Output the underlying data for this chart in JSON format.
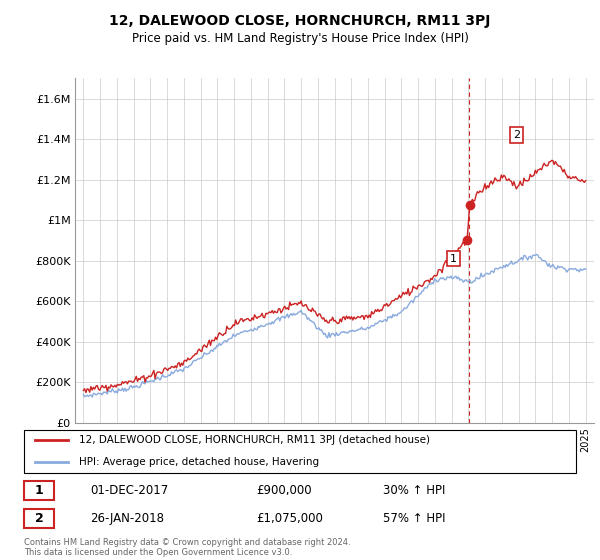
{
  "title": "12, DALEWOOD CLOSE, HORNCHURCH, RM11 3PJ",
  "subtitle": "Price paid vs. HM Land Registry's House Price Index (HPI)",
  "legend_line1": "12, DALEWOOD CLOSE, HORNCHURCH, RM11 3PJ (detached house)",
  "legend_line2": "HPI: Average price, detached house, Havering",
  "transaction1_label": "1",
  "transaction1_date": "01-DEC-2017",
  "transaction1_price": "£900,000",
  "transaction1_hpi": "30% ↑ HPI",
  "transaction2_label": "2",
  "transaction2_date": "26-JAN-2018",
  "transaction2_price": "£1,075,000",
  "transaction2_hpi": "57% ↑ HPI",
  "footer": "Contains HM Land Registry data © Crown copyright and database right 2024.\nThis data is licensed under the Open Government Licence v3.0.",
  "red_color": "#cc2222",
  "blue_color": "#88aadd",
  "dashed_color": "#cc2222",
  "ylim_min": 0,
  "ylim_max": 1700000,
  "yticks": [
    0,
    200000,
    400000,
    600000,
    800000,
    1000000,
    1200000,
    1400000,
    1600000
  ],
  "ytick_labels": [
    "£0",
    "£200K",
    "£400K",
    "£600K",
    "£800K",
    "£1M",
    "£1.2M",
    "£1.4M",
    "£1.6M"
  ],
  "year_start": 1995,
  "year_end": 2025,
  "transaction1_year": 2017.92,
  "transaction1_value": 900000,
  "transaction2_year": 2018.07,
  "transaction2_value": 1075000,
  "vline_x": 2018.05
}
